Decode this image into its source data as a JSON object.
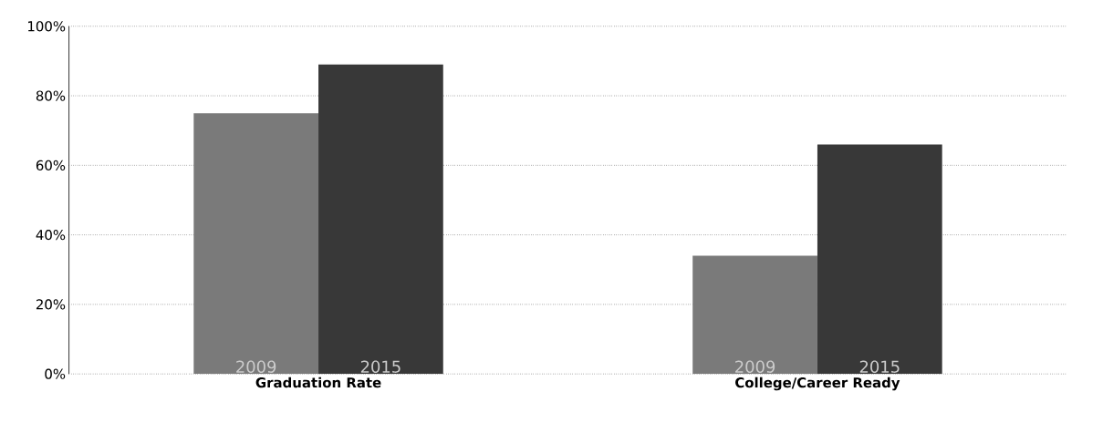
{
  "chart_data": {
    "type": "bar",
    "categories": [
      "Graduation Rate",
      "College/Career Ready"
    ],
    "series": [
      {
        "name": "2009",
        "color": "#7a7a7a",
        "values": [
          75,
          34
        ]
      },
      {
        "name": "2015",
        "color": "#383838",
        "values": [
          89,
          66
        ]
      }
    ],
    "ylim": [
      0,
      100
    ],
    "yticks": [
      {
        "value": 0,
        "label": "0%"
      },
      {
        "value": 20,
        "label": "20%"
      },
      {
        "value": 40,
        "label": "40%"
      },
      {
        "value": 60,
        "label": "60%"
      },
      {
        "value": 80,
        "label": "80%"
      },
      {
        "value": 100,
        "label": "100%"
      }
    ],
    "grid": "y",
    "legend": false
  }
}
